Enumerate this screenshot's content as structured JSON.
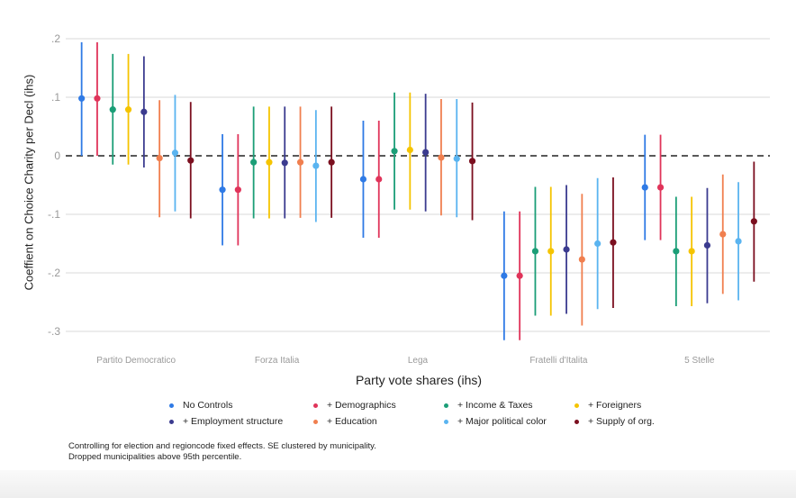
{
  "chart_data": {
    "type": "scatter",
    "subtype": "coefficient plot with confidence intervals",
    "xlabel": "Party vote shares  (ihs)",
    "ylabel": "Coeffient on Choice Charity per Decl (ihs)",
    "ylim": [
      -0.32,
      0.2
    ],
    "yticks": [
      0.2,
      0.1,
      0,
      -0.1,
      -0.2,
      -0.3
    ],
    "ytick_labels": [
      ".2",
      ".1",
      "0",
      "-.1",
      "-.2",
      "-.3"
    ],
    "grid": true,
    "legend_placement": "bottom",
    "categories": [
      "Partito Democratico",
      "Forza Italia",
      "Lega",
      "Fratelli d'Italita",
      "5 Stelle"
    ],
    "series": [
      {
        "name": "No Controls",
        "color": "#2f7ae5",
        "values": [
          0.098,
          -0.058,
          -0.04,
          -0.205,
          -0.054
        ],
        "ci_low": [
          0.0,
          -0.153,
          -0.14,
          -0.315,
          -0.144
        ],
        "ci_high": [
          0.194,
          0.037,
          0.06,
          -0.095,
          0.036
        ]
      },
      {
        "name": "+ Demographics",
        "color": "#e0345a",
        "values": [
          0.098,
          -0.058,
          -0.04,
          -0.205,
          -0.054
        ],
        "ci_low": [
          0.0,
          -0.153,
          -0.14,
          -0.315,
          -0.144
        ],
        "ci_high": [
          0.194,
          0.037,
          0.06,
          -0.095,
          0.036
        ]
      },
      {
        "name": "+ Income & Taxes",
        "color": "#1b9e77",
        "values": [
          0.079,
          -0.011,
          0.008,
          -0.163,
          -0.163
        ],
        "ci_low": [
          -0.015,
          -0.107,
          -0.092,
          -0.273,
          -0.257
        ],
        "ci_high": [
          0.174,
          0.084,
          0.108,
          -0.053,
          -0.07
        ]
      },
      {
        "name": "+ Foreigners",
        "color": "#f5c400",
        "values": [
          0.079,
          -0.011,
          0.01,
          -0.163,
          -0.163
        ],
        "ci_low": [
          -0.015,
          -0.107,
          -0.092,
          -0.273,
          -0.257
        ],
        "ci_high": [
          0.174,
          0.084,
          0.108,
          -0.053,
          -0.07
        ]
      },
      {
        "name": "+ Employment structure",
        "color": "#3b3b8f",
        "values": [
          0.075,
          -0.012,
          0.006,
          -0.16,
          -0.153
        ],
        "ci_low": [
          -0.02,
          -0.107,
          -0.095,
          -0.27,
          -0.252
        ],
        "ci_high": [
          0.17,
          0.084,
          0.106,
          -0.05,
          -0.055
        ]
      },
      {
        "name": "+ Education",
        "color": "#f07f4f",
        "values": [
          -0.004,
          -0.011,
          -0.003,
          -0.177,
          -0.134
        ],
        "ci_low": [
          -0.105,
          -0.106,
          -0.102,
          -0.29,
          -0.236
        ],
        "ci_high": [
          0.095,
          0.084,
          0.097,
          -0.065,
          -0.032
        ]
      },
      {
        "name": "+ Major political color",
        "color": "#5ab4f0",
        "values": [
          0.005,
          -0.017,
          -0.005,
          -0.15,
          -0.146
        ],
        "ci_low": [
          -0.095,
          -0.113,
          -0.105,
          -0.262,
          -0.247
        ],
        "ci_high": [
          0.104,
          0.078,
          0.097,
          -0.038,
          -0.045
        ]
      },
      {
        "name": "+ Supply of org.",
        "color": "#7b0f1f",
        "values": [
          -0.008,
          -0.011,
          -0.009,
          -0.148,
          -0.112
        ],
        "ci_low": [
          -0.107,
          -0.106,
          -0.11,
          -0.26,
          -0.215
        ],
        "ci_high": [
          0.092,
          0.084,
          0.091,
          -0.037,
          -0.01
        ]
      }
    ],
    "notes": [
      "Controlling for election and regioncode  fixed effects. SE clustered by municipality.",
      "Dropped municipalities above 95th percentile."
    ]
  }
}
